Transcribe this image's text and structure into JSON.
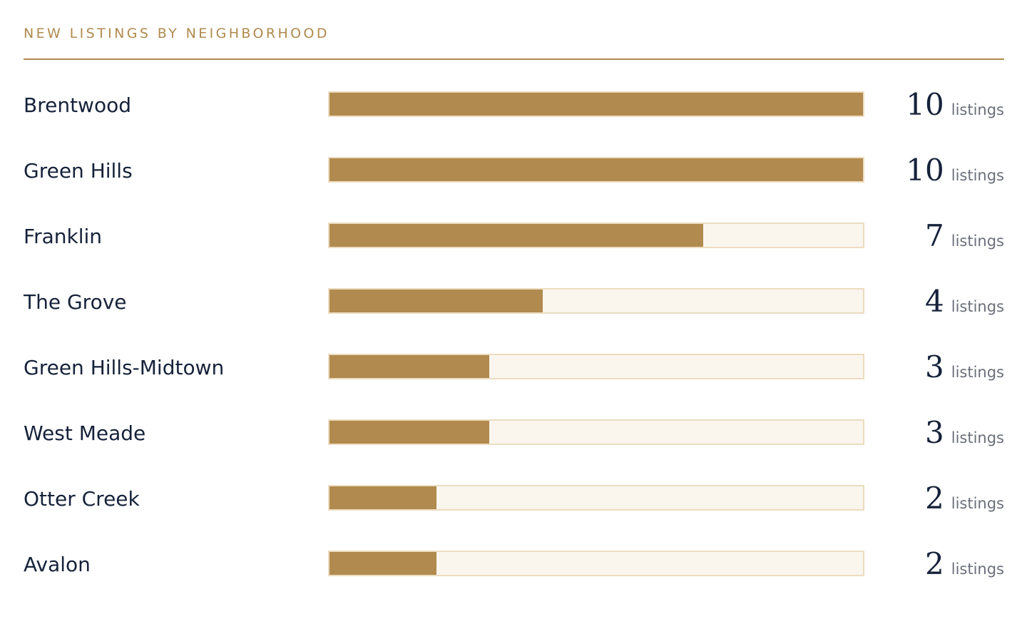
{
  "panel": {
    "title": "NEW LISTINGS BY NEIGHBORHOOD"
  },
  "colors": {
    "accent": "#b08a4e",
    "track": "#faf6ee",
    "track_border": "#ecdcc0",
    "text": "#16223a"
  },
  "chart_data": {
    "type": "bar",
    "orientation": "horizontal",
    "title": "NEW LISTINGS BY NEIGHBORHOOD",
    "xlim": [
      0,
      10
    ],
    "unit": "listings",
    "categories": [
      "Brentwood",
      "Green Hills",
      "Franklin",
      "The Grove",
      "Green Hills-Midtown",
      "West Meade",
      "Otter Creek",
      "Avalon"
    ],
    "values": [
      10,
      10,
      7,
      4,
      3,
      3,
      2,
      2
    ]
  }
}
